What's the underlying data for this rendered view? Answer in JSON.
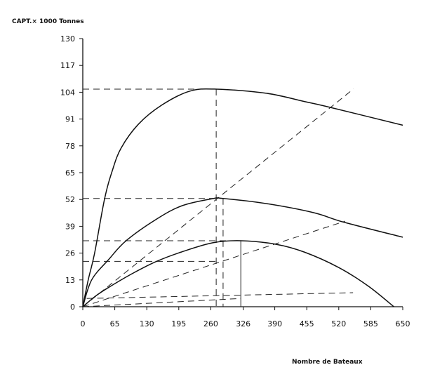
{
  "chart_data": {
    "type": "line",
    "ylabel": "CAPT.× 1000 Tonnes",
    "xlabel": "Nombre de Bateaux",
    "xlim": [
      0,
      650
    ],
    "ylim": [
      0,
      130
    ],
    "grid": false,
    "x_ticks": [
      0,
      65,
      130,
      195,
      260,
      326,
      390,
      455,
      520,
      585,
      650
    ],
    "x_tick_labels": [
      "0",
      "65",
      "130",
      "195",
      "260",
      "326",
      "390",
      "455",
      "520",
      "585",
      "650"
    ],
    "y_ticks": [
      0,
      13,
      26,
      39,
      52,
      65,
      78,
      91,
      104,
      117,
      130
    ],
    "y_tick_labels": [
      "0",
      "13",
      "26",
      "39",
      "52",
      "65",
      "78",
      "91",
      "104",
      "117",
      "130"
    ],
    "series": [
      {
        "style": "solid",
        "points": [
          [
            0,
            0
          ],
          [
            11,
            13
          ],
          [
            24,
            26
          ],
          [
            44,
            52
          ],
          [
            60,
            66
          ],
          [
            78,
            77
          ],
          [
            113,
            88.5
          ],
          [
            160,
            97.7
          ],
          [
            217,
            104.5
          ],
          [
            271,
            105.5
          ],
          [
            373,
            103.5
          ],
          [
            450,
            99.5
          ],
          [
            502,
            96.7
          ],
          [
            650,
            88
          ]
        ]
      },
      {
        "style": "solid",
        "points": [
          [
            0,
            0
          ],
          [
            18,
            13
          ],
          [
            53,
            23
          ],
          [
            88,
            32
          ],
          [
            150,
            42.5
          ],
          [
            202,
            49
          ],
          [
            264,
            52.4
          ],
          [
            285,
            52.5
          ],
          [
            373,
            50
          ],
          [
            469,
            45.6
          ],
          [
            530,
            41
          ],
          [
            650,
            33.7
          ]
        ]
      },
      {
        "style": "solid",
        "points": [
          [
            0,
            0
          ],
          [
            25,
            5
          ],
          [
            50,
            9
          ],
          [
            100,
            16
          ],
          [
            150,
            22
          ],
          [
            200,
            26.5
          ],
          [
            264,
            31
          ],
          [
            321,
            32
          ],
          [
            392,
            30.3
          ],
          [
            450,
            26.5
          ],
          [
            520,
            19
          ],
          [
            580,
            10
          ],
          [
            632,
            0
          ]
        ]
      }
    ],
    "reference_lines": [
      {
        "style": "dashed",
        "points": [
          [
            0,
            105.5
          ],
          [
            271,
            105.5
          ]
        ]
      },
      {
        "style": "dashed",
        "points": [
          [
            271,
            105.5
          ],
          [
            271,
            0
          ]
        ]
      },
      {
        "style": "dashed",
        "points": [
          [
            0,
            52.5
          ],
          [
            285,
            52.5
          ]
        ]
      },
      {
        "style": "dashed",
        "points": [
          [
            285,
            52.5
          ],
          [
            285,
            0
          ]
        ]
      },
      {
        "style": "dashed",
        "points": [
          [
            0,
            32
          ],
          [
            321,
            32
          ]
        ]
      },
      {
        "style": "solid",
        "points": [
          [
            321,
            32
          ],
          [
            321,
            0
          ]
        ]
      },
      {
        "style": "dashed",
        "points": [
          [
            0,
            22
          ],
          [
            271,
            22
          ]
        ]
      },
      {
        "style": "dashed",
        "points": [
          [
            0,
            0
          ],
          [
            550,
            105.6
          ]
        ]
      },
      {
        "style": "dashed",
        "points": [
          [
            0,
            0
          ],
          [
            533,
            41.5
          ]
        ]
      },
      {
        "style": "dashed",
        "points": [
          [
            8,
            4
          ],
          [
            549,
            6.8
          ]
        ]
      },
      {
        "style": "dashed",
        "points": [
          [
            0,
            0
          ],
          [
            321,
            4
          ]
        ]
      }
    ]
  }
}
